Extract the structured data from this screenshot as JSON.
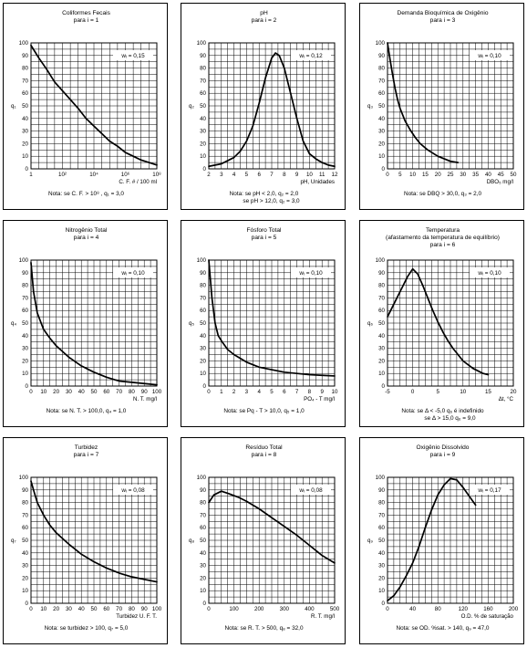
{
  "chart_data": [
    {
      "type": "line",
      "title": "Coliformes Fecais",
      "subtitle": "para i = 1",
      "ylabel": "q₁",
      "xlabel": "C. F. # / 100 ml",
      "weight": "wᵢ = 0,15",
      "xscale": "log",
      "xlim": [
        1,
        100000000
      ],
      "ylim": [
        0,
        100
      ],
      "xticks": [
        1,
        100,
        10000,
        1000000,
        100000000
      ],
      "xticklabels": [
        "1",
        "10²",
        "10⁴",
        "10⁶",
        "10⁸"
      ],
      "yticks": [
        0,
        10,
        20,
        30,
        40,
        50,
        60,
        70,
        80,
        90,
        100
      ],
      "grid": true,
      "x": [
        1,
        3.16,
        10,
        31.6,
        100,
        316,
        1000,
        3162,
        10000,
        31623,
        100000,
        316228,
        1000000,
        3162278,
        10000000,
        31622777,
        100000000
      ],
      "y": [
        98,
        88,
        79,
        69,
        62,
        55,
        48,
        40,
        34,
        28,
        22,
        18,
        13,
        10,
        7,
        5,
        3
      ],
      "notes": [
        "Nota: se C. F. > 10⁸ , q₁ = 3,0"
      ]
    },
    {
      "type": "line",
      "title": "pH",
      "subtitle": "para i = 2",
      "ylabel": "q₂",
      "xlabel": "pH, Unidades",
      "weight": "wᵢ = 0,12",
      "xlim": [
        2,
        12
      ],
      "ylim": [
        0,
        100
      ],
      "xticks": [
        2,
        3,
        4,
        5,
        6,
        7,
        8,
        9,
        10,
        11,
        12
      ],
      "xticklabels": [
        "2",
        "3",
        "4",
        "5",
        "6",
        "7",
        "8",
        "9",
        "10",
        "11",
        "12"
      ],
      "yticks": [
        0,
        10,
        20,
        30,
        40,
        50,
        60,
        70,
        80,
        90,
        100
      ],
      "grid": true,
      "x": [
        2,
        3,
        4,
        4.5,
        5,
        5.5,
        6,
        6.5,
        7,
        7.3,
        7.6,
        8,
        8.5,
        9,
        9.5,
        10,
        10.5,
        11,
        11.5,
        12
      ],
      "y": [
        2,
        4,
        9,
        14,
        22,
        34,
        52,
        72,
        88,
        92,
        90,
        80,
        60,
        40,
        22,
        12,
        8,
        5,
        3,
        2
      ],
      "notes": [
        "Nota: se pH < 2,0,    q₂ = 2,0",
        "se pH > 12,0, q₂ = 3,0"
      ]
    },
    {
      "type": "line",
      "title": "Demanda Bioquímica de Oxigênio",
      "subtitle": "para i = 3",
      "ylabel": "q₃",
      "xlabel": "DBO₅ mg/l",
      "weight": "wᵢ = 0,10",
      "xlim": [
        0,
        50
      ],
      "ylim": [
        0,
        100
      ],
      "xticks": [
        0,
        5,
        10,
        15,
        20,
        25,
        30,
        35,
        40,
        45,
        50
      ],
      "xticklabels": [
        "0",
        "5",
        "10",
        "15",
        "20",
        "25",
        "30",
        "35",
        "40",
        "45",
        "50"
      ],
      "yticks": [
        0,
        10,
        20,
        30,
        40,
        50,
        60,
        70,
        80,
        90,
        100
      ],
      "grid": true,
      "x": [
        0,
        1,
        2,
        3,
        4,
        5,
        7,
        9,
        11,
        13,
        16,
        20,
        25,
        28
      ],
      "y": [
        100,
        87,
        75,
        64,
        55,
        48,
        38,
        31,
        25,
        20,
        15,
        10,
        6,
        5
      ],
      "notes": [
        "Nota: se DBQ > 30,0,  q₃ = 2,0"
      ]
    },
    {
      "type": "line",
      "title": "Nitrogênio Total",
      "subtitle": "para i = 4",
      "ylabel": "q₄",
      "xlabel": "N. T.  mg/l",
      "weight": "wᵢ = 0,10",
      "xlim": [
        0,
        100
      ],
      "ylim": [
        0,
        100
      ],
      "xticks": [
        0,
        10,
        20,
        30,
        40,
        50,
        60,
        70,
        80,
        90,
        100
      ],
      "xticklabels": [
        "0",
        "10",
        "20",
        "30",
        "40",
        "50",
        "60",
        "70",
        "80",
        "90",
        "100"
      ],
      "yticks": [
        0,
        10,
        20,
        30,
        40,
        50,
        60,
        70,
        80,
        90,
        100
      ],
      "grid": true,
      "x": [
        0,
        2,
        5,
        10,
        15,
        20,
        30,
        40,
        50,
        60,
        70,
        80,
        90,
        100
      ],
      "y": [
        98,
        75,
        58,
        45,
        38,
        32,
        23,
        16,
        11,
        7,
        4,
        3,
        2,
        1
      ],
      "notes": [
        "Nota: se N. T. > 100,0,  q₄ = 1,0"
      ]
    },
    {
      "type": "line",
      "title": "Fósforo Total",
      "subtitle": "para i = 5",
      "ylabel": "q₅",
      "xlabel": "PO₄ - T  mg/l",
      "weight": "wᵢ = 0,10",
      "xlim": [
        0,
        10
      ],
      "ylim": [
        0,
        100
      ],
      "xticks": [
        0,
        1,
        2,
        3,
        4,
        5,
        6,
        7,
        8,
        9,
        10
      ],
      "xticklabels": [
        "0",
        "1",
        "2",
        "3",
        "4",
        "5",
        "6",
        "7",
        "8",
        "9",
        "10"
      ],
      "yticks": [
        0,
        10,
        20,
        30,
        40,
        50,
        60,
        70,
        80,
        90,
        100
      ],
      "grid": true,
      "x": [
        0,
        0.25,
        0.5,
        0.75,
        1,
        1.5,
        2,
        3,
        4,
        5,
        6,
        7,
        8,
        9,
        10
      ],
      "y": [
        100,
        70,
        50,
        40,
        36,
        29,
        25,
        19,
        15,
        13,
        11,
        10,
        9,
        8.5,
        8
      ],
      "notes": [
        "Nota: se Pq - T > 10,0,  q₅ = 1,0"
      ]
    },
    {
      "type": "line",
      "title": "Temperatura",
      "subtitle": "(afastamento da temperatura de equilíbrio)",
      "subtitle2": "para i = 6",
      "ylabel": "q₆",
      "xlabel": "Δt, °C",
      "weight": "wᵢ = 0,10",
      "xlim": [
        -5,
        20
      ],
      "ylim": [
        0,
        100
      ],
      "xticks": [
        -5,
        0,
        5,
        10,
        15,
        20
      ],
      "xticklabels": [
        "-5",
        "0",
        "5",
        "10",
        "15",
        "20"
      ],
      "yticks": [
        0,
        10,
        20,
        30,
        40,
        50,
        60,
        70,
        80,
        90,
        100
      ],
      "grid": true,
      "x": [
        -5,
        -4,
        -3,
        -2,
        -1,
        0,
        1,
        2,
        3,
        4,
        5,
        6,
        7,
        8,
        9,
        10,
        11,
        12,
        13,
        14,
        15
      ],
      "y": [
        55,
        63,
        71,
        79,
        87,
        93,
        89,
        80,
        70,
        60,
        51,
        43,
        36,
        30,
        25,
        20,
        17,
        14,
        12,
        10,
        9
      ],
      "notes": [
        "Nota: se Δ < -5,0   q₆ é indefinido",
        "se Δ > 15,0   q₆ = 9,0"
      ]
    },
    {
      "type": "line",
      "title": "Turbidez",
      "subtitle": "para i = 7",
      "ylabel": "q₇",
      "xlabel": "Turbidez U. F. T.",
      "weight": "wᵢ = 0,08",
      "xlim": [
        0,
        100
      ],
      "ylim": [
        0,
        100
      ],
      "xticks": [
        0,
        10,
        20,
        30,
        40,
        50,
        60,
        70,
        80,
        90,
        100
      ],
      "xticklabels": [
        "0",
        "10",
        "20",
        "30",
        "40",
        "50",
        "60",
        "70",
        "80",
        "90",
        "100"
      ],
      "yticks": [
        0,
        10,
        20,
        30,
        40,
        50,
        60,
        70,
        80,
        90,
        100
      ],
      "grid": true,
      "x": [
        0,
        2,
        5,
        10,
        15,
        20,
        30,
        40,
        50,
        60,
        70,
        80,
        90,
        100
      ],
      "y": [
        97,
        90,
        80,
        70,
        62,
        56,
        47,
        39,
        33,
        28,
        24,
        21,
        19,
        17
      ],
      "notes": [
        "Nota: se turbidez > 100, q₇ = 5,0"
      ]
    },
    {
      "type": "line",
      "title": "Resíduo Total",
      "subtitle": "para i = 8",
      "ylabel": "q₈",
      "xlabel": "R. T.  mg/l",
      "weight": "wᵢ = 0,08",
      "xlim": [
        0,
        500
      ],
      "ylim": [
        0,
        100
      ],
      "xticks": [
        0,
        100,
        200,
        300,
        400,
        500
      ],
      "xticklabels": [
        "0",
        "100",
        "200",
        "300",
        "400",
        "500"
      ],
      "yticks": [
        0,
        10,
        20,
        30,
        40,
        50,
        60,
        70,
        80,
        90,
        100
      ],
      "grid": true,
      "x": [
        0,
        20,
        50,
        80,
        120,
        150,
        200,
        250,
        300,
        350,
        400,
        450,
        500
      ],
      "y": [
        80,
        86,
        89,
        87,
        84,
        81,
        75,
        68,
        61,
        54,
        46,
        38,
        32
      ],
      "notes": [
        "Nota: se R. T. > 500, q₈ = 32,0"
      ]
    },
    {
      "type": "line",
      "title": "Oxigênio Dissolvido",
      "subtitle": "para i = 9",
      "ylabel": "q₉",
      "xlabel": "O.D. % de saturação",
      "weight": "wᵢ = 0,17",
      "xlim": [
        0,
        200
      ],
      "ylim": [
        0,
        100
      ],
      "xticks": [
        0,
        40,
        80,
        120,
        160,
        200
      ],
      "xticklabels": [
        "0",
        "40",
        "80",
        "120",
        "160",
        "200"
      ],
      "yticks": [
        0,
        10,
        20,
        30,
        40,
        50,
        60,
        70,
        80,
        90,
        100
      ],
      "grid": true,
      "x": [
        0,
        10,
        20,
        30,
        40,
        50,
        60,
        70,
        80,
        90,
        100,
        110,
        120,
        130,
        140
      ],
      "y": [
        2,
        6,
        13,
        22,
        32,
        45,
        60,
        74,
        86,
        94,
        99,
        98,
        92,
        85,
        78
      ],
      "notes": [
        "Nota: se OD. %sat. > 140, q₉ = 47,0"
      ]
    }
  ]
}
